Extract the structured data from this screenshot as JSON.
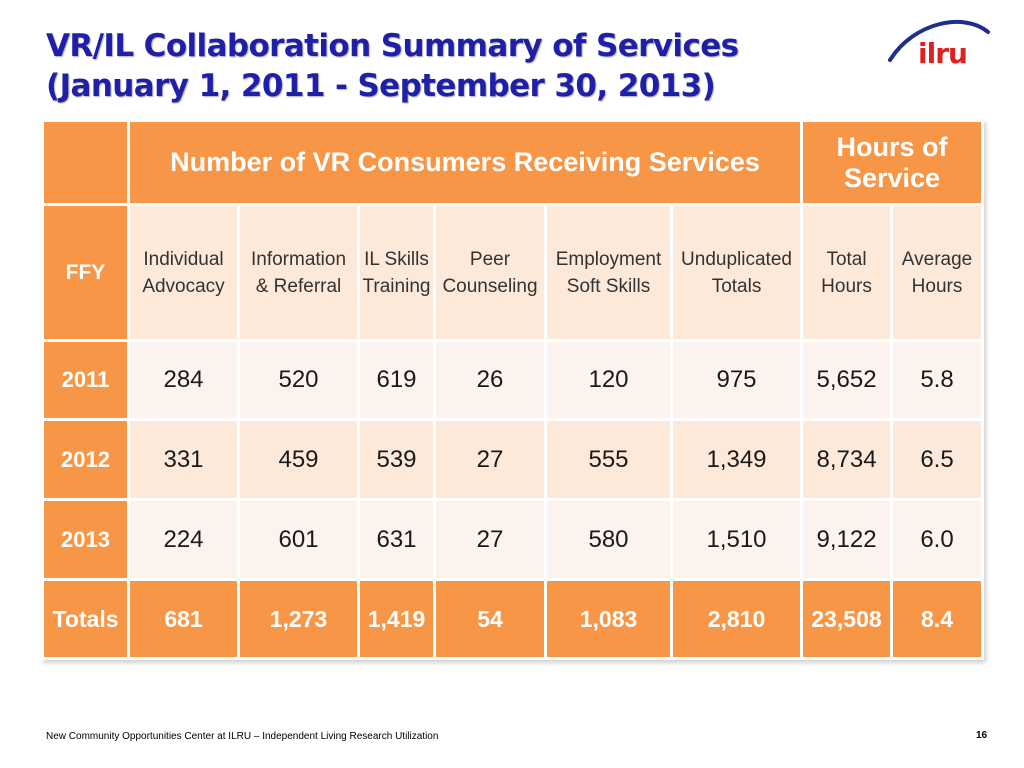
{
  "slide": {
    "title_line1": "VR/IL Collaboration Summary of Services",
    "title_line2": "(January 1, 2011 - September 30, 2013)",
    "logo_text": "ilru",
    "footer": "New Community Opportunities Center at ILRU – Independent Living Research Utilization",
    "page_number": "16"
  },
  "table": {
    "group_consumers": "Number of VR Consumers Receiving Services",
    "group_hours_line1": "Hours of",
    "group_hours_line2": "Service",
    "ffy_label": "FFY",
    "columns": [
      {
        "line1": "Individual",
        "line2": "Advocacy"
      },
      {
        "line1": "Information",
        "line2": "& Referral"
      },
      {
        "line1": "IL Skills",
        "line2": "Training"
      },
      {
        "line1": "Peer",
        "line2": "Counseling"
      },
      {
        "line1": "Employment",
        "line2": "Soft Skills"
      },
      {
        "line1": "Unduplicated",
        "line2": "Totals"
      },
      {
        "line1": "Total",
        "line2": "Hours"
      },
      {
        "line1": "Average",
        "line2": "Hours"
      }
    ],
    "rows": [
      {
        "label": "2011",
        "values": [
          "284",
          "520",
          "619",
          "26",
          "120",
          "975",
          "5,652",
          "5.8"
        ]
      },
      {
        "label": "2012",
        "values": [
          "331",
          "459",
          "539",
          "27",
          "555",
          "1,349",
          "8,734",
          "6.5"
        ]
      },
      {
        "label": "2013",
        "values": [
          "224",
          "601",
          "631",
          "27",
          "580",
          "1,510",
          "9,122",
          "6.0"
        ]
      }
    ],
    "totals": {
      "label": "Totals",
      "values": [
        "681",
        "1,273",
        "1,419",
        "54",
        "1,083",
        "2,810",
        "23,508",
        "8.4"
      ]
    }
  },
  "colors": {
    "header_orange": "#f79646",
    "row_light": "#fde9d9",
    "row_lighter": "#fcf3ee",
    "title_blue": "#1f1fa8",
    "logo_red": "#e02020"
  }
}
